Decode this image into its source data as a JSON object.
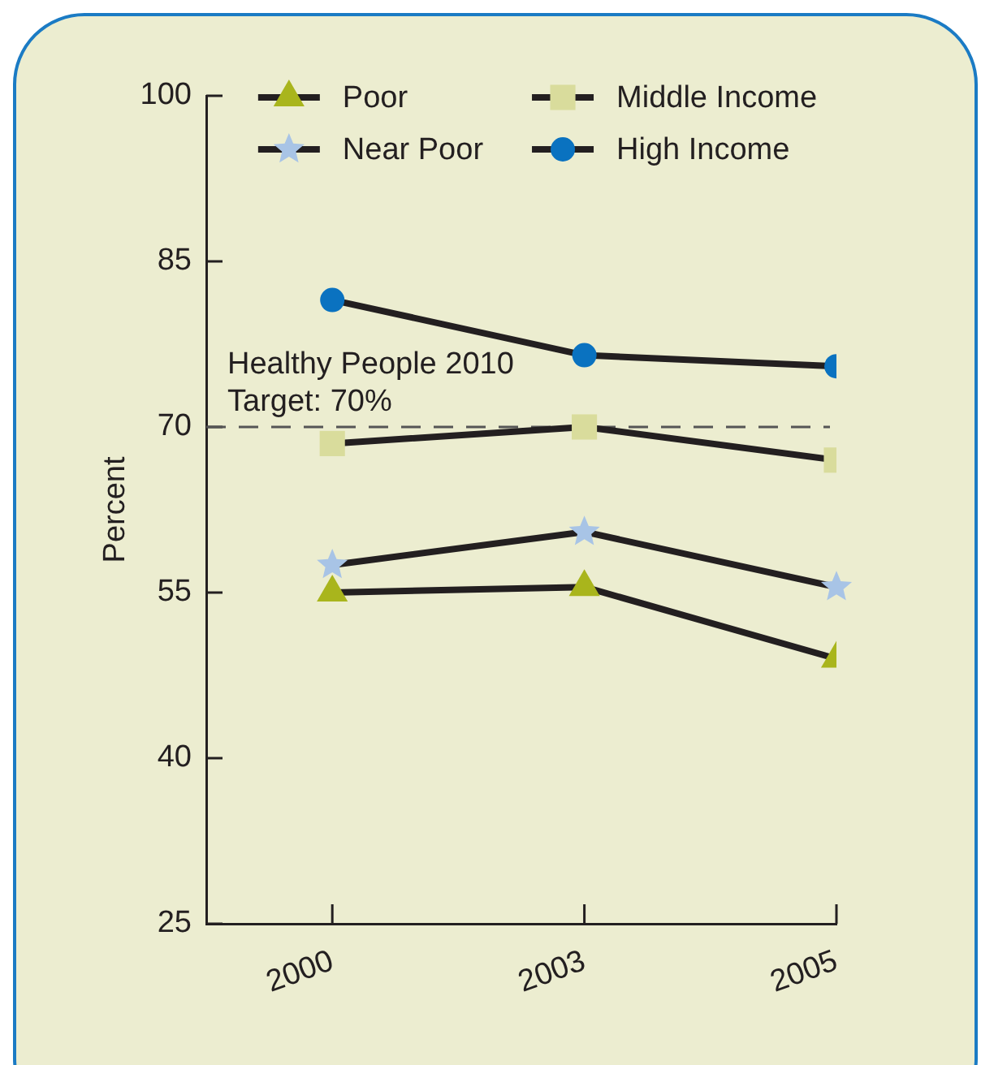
{
  "chart_data": {
    "type": "line",
    "categories": [
      "2000",
      "2003",
      "2005"
    ],
    "ylabel": "Percent",
    "ylim": [
      25,
      100
    ],
    "yticks": [
      25,
      40,
      55,
      70,
      85,
      100
    ],
    "series": [
      {
        "name": "Poor",
        "color": "#a9b51c",
        "marker": "triangle",
        "values": [
          55,
          55.5,
          49
        ]
      },
      {
        "name": "Near Poor",
        "color": "#a8c4e6",
        "marker": "star",
        "values": [
          57.5,
          60.5,
          55.5
        ]
      },
      {
        "name": "Middle Income",
        "color": "#d9dc9c",
        "marker": "square",
        "values": [
          68.5,
          70,
          67
        ]
      },
      {
        "name": "High Income",
        "color": "#0a72c0",
        "marker": "circle",
        "values": [
          81.5,
          76.5,
          75.5
        ]
      }
    ],
    "ref_lines": [
      {
        "axis": "y",
        "value": 70,
        "label": "Healthy People 2010\nTarget: 70%",
        "color": "#555555",
        "line_style": "dashed"
      }
    ],
    "legend": "top"
  }
}
